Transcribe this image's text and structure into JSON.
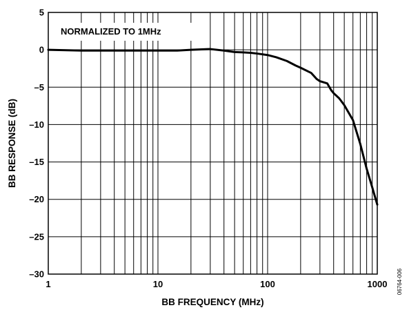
{
  "chart_data": {
    "type": "line",
    "title": "",
    "annotation": "NORMALIZED TO 1MHz",
    "xlabel": "BB FREQUENCY (MHz)",
    "ylabel": "BB RESPONSE (dB)",
    "xscale": "log",
    "xlim": [
      1,
      1000
    ],
    "ylim": [
      -30,
      5
    ],
    "x_ticks": [
      1,
      10,
      100,
      1000
    ],
    "x_tick_labels": [
      "1",
      "10",
      "100",
      "1000"
    ],
    "y_ticks": [
      5,
      0,
      -5,
      -10,
      -15,
      -20,
      -25,
      -30
    ],
    "y_tick_labels": [
      "5",
      "0",
      "–5",
      "–10",
      "–15",
      "–20",
      "–25",
      "–30"
    ],
    "grid": true,
    "series": [
      {
        "color": "#000000",
        "x": [
          1,
          2,
          5,
          10,
          15,
          20,
          30,
          40,
          50,
          60,
          70,
          80,
          100,
          120,
          150,
          180,
          200,
          250,
          280,
          300,
          350,
          380,
          400,
          450,
          500,
          600,
          700,
          800,
          900,
          1000
        ],
        "y": [
          0,
          -0.1,
          -0.1,
          -0.1,
          -0.1,
          0,
          0.1,
          -0.1,
          -0.3,
          -0.35,
          -0.4,
          -0.5,
          -0.7,
          -1.0,
          -1.5,
          -2.1,
          -2.4,
          -3.1,
          -3.9,
          -4.2,
          -4.5,
          -5.4,
          -5.8,
          -6.5,
          -7.4,
          -9.4,
          -12.6,
          -15.9,
          -18.4,
          -20.7
        ]
      }
    ]
  },
  "side_code": "06764-006"
}
